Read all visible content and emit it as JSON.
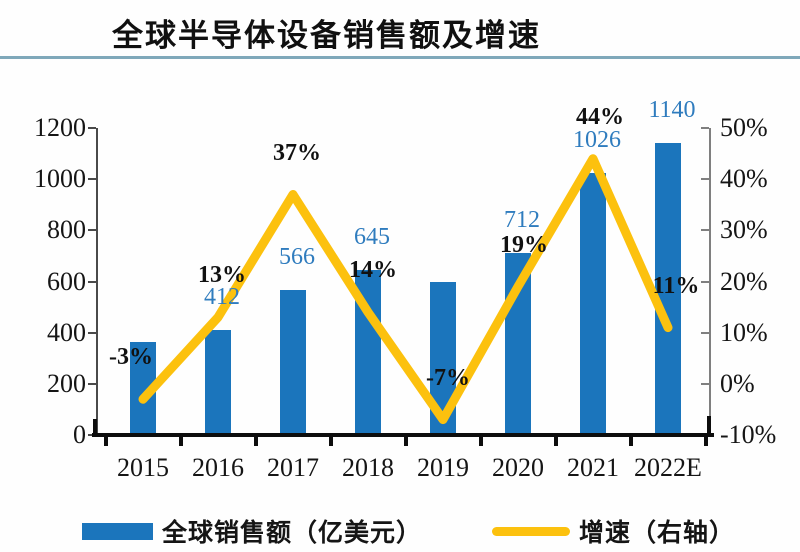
{
  "header": {
    "title": "全球半导体设备销售额及增速"
  },
  "colors": {
    "bar": "#1b75bc",
    "line": "#fcc10e",
    "value_label": "#2f7cbe",
    "pct_label": "#111111",
    "underline": "#7fa8ba",
    "axis_left": "#4a4a4a",
    "axis_right": "#7f7f7f",
    "axis_bottom": "#0d0d0d",
    "text": "#151515",
    "background": "#fefefe"
  },
  "legend": [
    {
      "label": "全球销售额（亿美元）",
      "swatch": "bar"
    },
    {
      "label": "增速（右轴）",
      "swatch": "line"
    }
  ],
  "chart_data": {
    "type": "bar",
    "title": "全球半导体设备销售额及增速",
    "categories": [
      "2015",
      "2016",
      "2017",
      "2018",
      "2019",
      "2020",
      "2021",
      "2022E"
    ],
    "series": [
      {
        "name": "全球销售额（亿美元）",
        "type": "bar",
        "axis": "left",
        "values": [
          365,
          412,
          566,
          645,
          598,
          712,
          1026,
          1140
        ],
        "shown_labels": [
          "",
          "412",
          "566",
          "645",
          "",
          "712",
          "1026",
          "1140"
        ]
      },
      {
        "name": "增速（右轴）",
        "type": "line",
        "axis": "right",
        "values": [
          -3,
          13,
          37,
          14,
          -7,
          19,
          44,
          11
        ],
        "shown_labels": [
          "-3%",
          "13%",
          "37%",
          "14%",
          "-7%",
          "19%",
          "44%",
          "11%"
        ]
      }
    ],
    "left_axis": {
      "min": 0,
      "max": 1200,
      "step": 200,
      "tick_labels": [
        "0",
        "200",
        "400",
        "600",
        "800",
        "1000",
        "1200"
      ]
    },
    "right_axis": {
      "min": -10,
      "max": 50,
      "step": 10,
      "tick_labels": [
        "-10%",
        "0%",
        "10%",
        "20%",
        "30%",
        "40%",
        "50%"
      ]
    },
    "grid": false,
    "legend_position": "bottom"
  }
}
